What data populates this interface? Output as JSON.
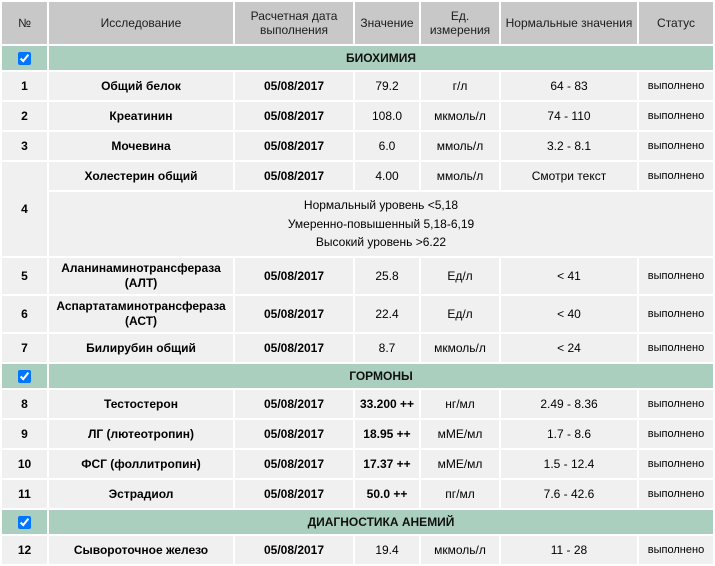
{
  "table": {
    "headers": [
      "№",
      "Исследование",
      "Расчетная дата выполнения",
      "Значение",
      "Ед. измерения",
      "Нормальные значения",
      "Статус"
    ],
    "sections": [
      {
        "title": "БИОХИМИЯ",
        "checked": true,
        "rows": [
          {
            "num": "1",
            "name": "Общий белок",
            "date": "05/08/2017",
            "value": "79.2",
            "value_bold": false,
            "unit": "г/л",
            "normal": "64 - 83",
            "status": "выполнено"
          },
          {
            "num": "2",
            "name": "Креатинин",
            "date": "05/08/2017",
            "value": "108.0",
            "value_bold": false,
            "unit": "мкмоль/л",
            "normal": "74 - 110",
            "status": "выполнено"
          },
          {
            "num": "3",
            "name": "Мочевина",
            "date": "05/08/2017",
            "value": "6.0",
            "value_bold": false,
            "unit": "ммоль/л",
            "normal": "3.2 - 8.1",
            "status": "выполнено"
          },
          {
            "num": "4",
            "name": "Холестерин общий",
            "date": "05/08/2017",
            "value": "4.00",
            "value_bold": false,
            "unit": "ммоль/л",
            "normal": "Смотри текст",
            "status": "выполнено",
            "comment_lines": [
              "Нормальный уровень <5,18",
              "Умеренно-повышенный 5,18-6,19",
              "Высокий уровень >6.22"
            ]
          },
          {
            "num": "5",
            "name": "Аланинаминотрансфераза (АЛТ)",
            "date": "05/08/2017",
            "value": "25.8",
            "value_bold": false,
            "unit": "Ед/л",
            "normal": "< 41",
            "status": "выполнено"
          },
          {
            "num": "6",
            "name": "Аспартатаминотрансфераза (АСТ)",
            "date": "05/08/2017",
            "value": "22.4",
            "value_bold": false,
            "unit": "Ед/л",
            "normal": "< 40",
            "status": "выполнено"
          },
          {
            "num": "7",
            "name": "Билирубин общий",
            "date": "05/08/2017",
            "value": "8.7",
            "value_bold": false,
            "unit": "мкмоль/л",
            "normal": "< 24",
            "status": "выполнено"
          }
        ]
      },
      {
        "title": "ГОРМОНЫ",
        "checked": true,
        "rows": [
          {
            "num": "8",
            "name": "Тестостерон",
            "date": "05/08/2017",
            "value": "33.200 ++",
            "value_bold": true,
            "unit": "нг/мл",
            "normal": "2.49 - 8.36",
            "status": "выполнено"
          },
          {
            "num": "9",
            "name": "ЛГ (лютеотропин)",
            "date": "05/08/2017",
            "value": "18.95 ++",
            "value_bold": true,
            "unit": "мМЕ/мл",
            "normal": "1.7 - 8.6",
            "status": "выполнено"
          },
          {
            "num": "10",
            "name": "ФСГ (фоллитропин)",
            "date": "05/08/2017",
            "value": "17.37 ++",
            "value_bold": true,
            "unit": "мМЕ/мл",
            "normal": "1.5 - 12.4",
            "status": "выполнено"
          },
          {
            "num": "11",
            "name": "Эстрадиол",
            "date": "05/08/2017",
            "value": "50.0 ++",
            "value_bold": true,
            "unit": "пг/мл",
            "normal": "7.6 - 42.6",
            "status": "выполнено"
          }
        ]
      },
      {
        "title": "ДИАГНОСТИКА АНЕМИЙ",
        "checked": true,
        "rows": [
          {
            "num": "12",
            "name": "Сывороточное железо",
            "date": "05/08/2017",
            "value": "19.4",
            "value_bold": false,
            "unit": "мкмоль/л",
            "normal": "11 - 28",
            "status": "выполнено"
          }
        ]
      }
    ]
  },
  "colors": {
    "section_bg": "#aacfbe",
    "header_bg": "#c8c8c8",
    "row_bg": "#f0f0f0",
    "gap": "#ffffff",
    "text": "#000000"
  }
}
